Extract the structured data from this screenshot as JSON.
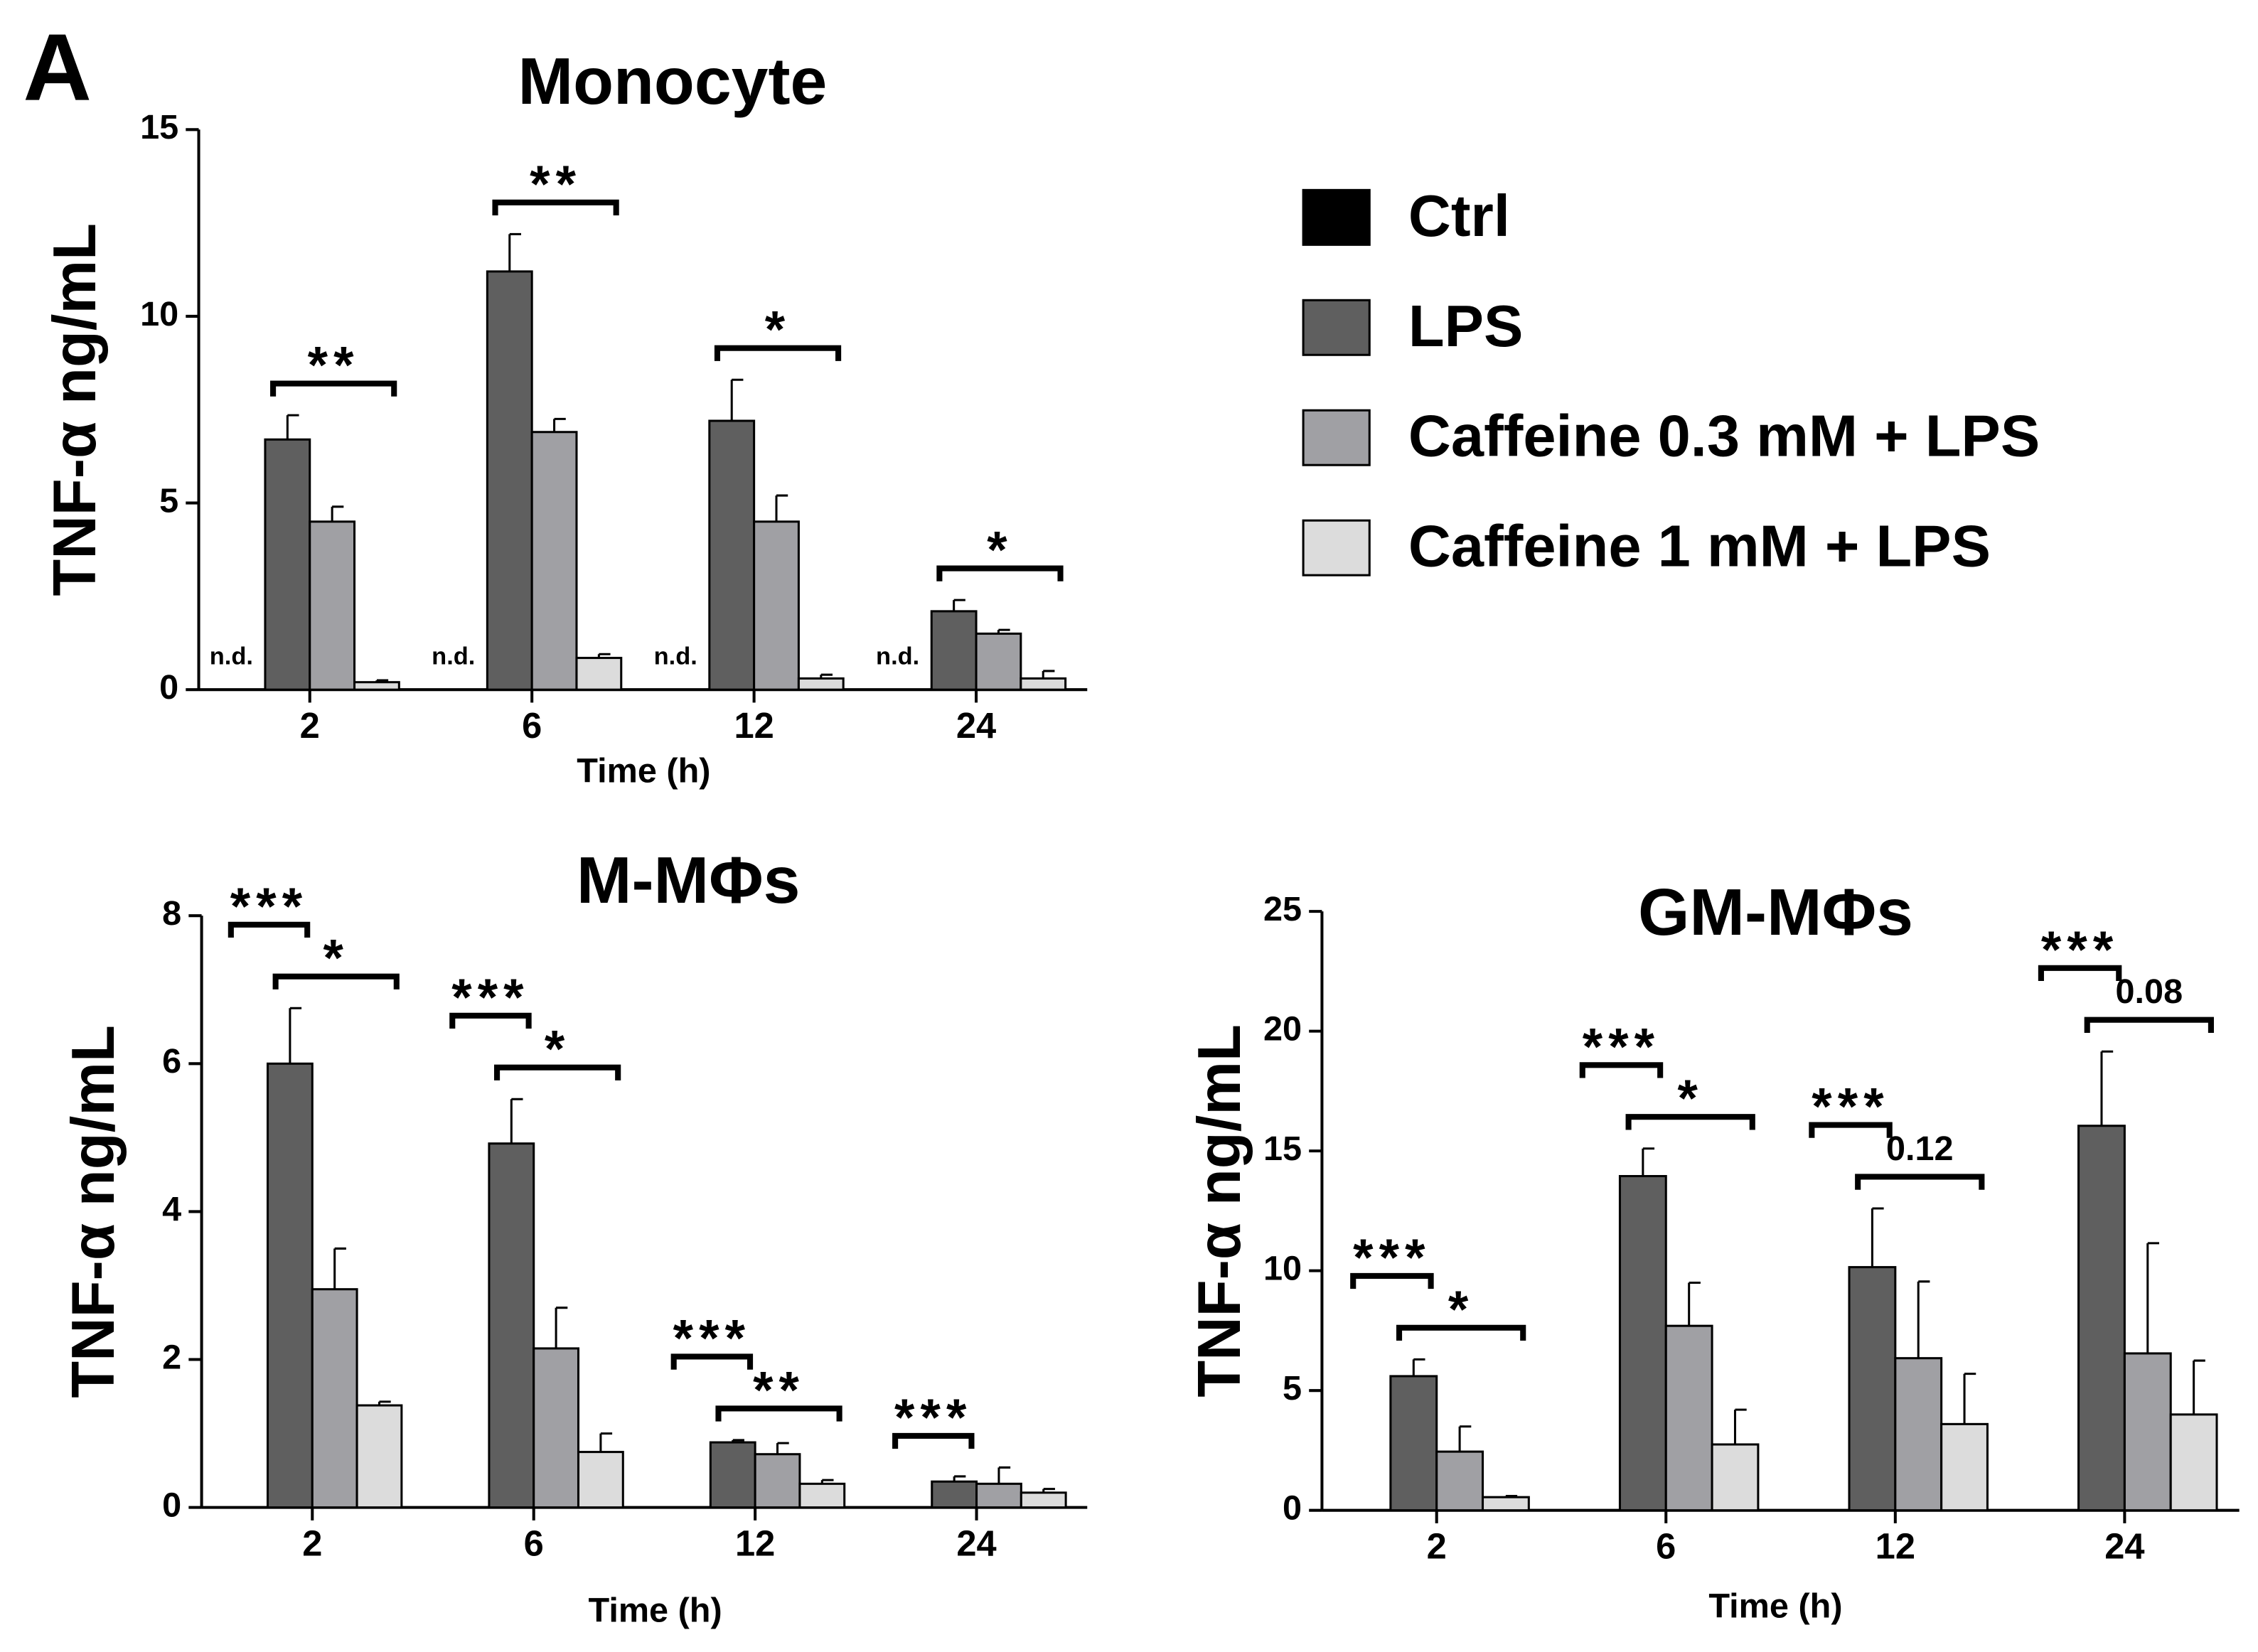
{
  "panel_label": "A",
  "legend": [
    {
      "name": "Ctrl",
      "color": "#000000"
    },
    {
      "name": "LPS",
      "color": "#5f5f5f"
    },
    {
      "name": "Caffeine 0.3 mM + LPS",
      "color": "#a0a0a4"
    },
    {
      "name": "Caffeine 1 mM + LPS",
      "color": "#dcdcdc"
    }
  ],
  "chart_data": [
    {
      "type": "bar",
      "title": "Monocyte",
      "x_label": "Time (h)",
      "y_label": "TNF-α  ng/mL",
      "categories": [
        "2",
        "6",
        "12",
        "24"
      ],
      "series": [
        {
          "values": [
            null,
            null,
            null,
            null
          ],
          "value_labels": [
            "n.d.",
            "n.d.",
            "n.d.",
            "n.d."
          ]
        },
        {
          "values": [
            6.7,
            11.2,
            7.2,
            2.1
          ],
          "errors": [
            0.65,
            1.0,
            1.1,
            0.3
          ]
        },
        {
          "values": [
            4.5,
            6.9,
            4.5,
            1.5
          ],
          "errors": [
            0.4,
            0.35,
            0.7,
            0.1
          ]
        },
        {
          "values": [
            0.2,
            0.85,
            0.3,
            0.3
          ],
          "errors": [
            0.05,
            0.1,
            0.1,
            0.2
          ]
        }
      ],
      "ylim": [
        0,
        15
      ],
      "yticks": [
        0,
        5,
        10,
        15
      ],
      "annotations": [
        {
          "label": "**",
          "group": 0,
          "from": 1,
          "to": 3
        },
        {
          "label": "**",
          "group": 1,
          "from": 1,
          "to": 3
        },
        {
          "label": "*",
          "group": 2,
          "from": 1,
          "to": 3
        },
        {
          "label": "*",
          "group": 3,
          "from": 1,
          "to": 3
        }
      ]
    },
    {
      "type": "bar",
      "title": "M-MΦs",
      "x_label": "Time (h)",
      "y_label": "TNF-α  ng/mL",
      "categories": [
        "2",
        "6",
        "12",
        "24"
      ],
      "series": [
        {
          "values": [
            null,
            null,
            null,
            null
          ]
        },
        {
          "values": [
            6.0,
            4.92,
            0.88,
            0.35
          ],
          "errors": [
            0.75,
            0.6,
            0.03,
            0.07
          ]
        },
        {
          "values": [
            2.95,
            2.15,
            0.72,
            0.32
          ],
          "errors": [
            0.55,
            0.55,
            0.15,
            0.22
          ]
        },
        {
          "values": [
            1.38,
            0.75,
            0.32,
            0.2
          ],
          "errors": [
            0.05,
            0.25,
            0.05,
            0.05
          ]
        }
      ],
      "ylim": [
        0,
        8
      ],
      "yticks": [
        0,
        2,
        4,
        6,
        8
      ],
      "annotations": [
        {
          "label": "***",
          "group": 0,
          "from": 0,
          "to": 1
        },
        {
          "label": "*",
          "group": 0,
          "from": 1,
          "to": 3
        },
        {
          "label": "***",
          "group": 1,
          "from": 0,
          "to": 1
        },
        {
          "label": "*",
          "group": 1,
          "from": 1,
          "to": 3
        },
        {
          "label": "***",
          "group": 2,
          "from": 0,
          "to": 1
        },
        {
          "label": "**",
          "group": 2,
          "from": 1,
          "to": 3
        },
        {
          "label": "***",
          "group": 3,
          "from": 0,
          "to": 1
        }
      ]
    },
    {
      "type": "bar",
      "title": "GM-MΦs",
      "x_label": "Time (h)",
      "y_label": "TNF-α  ng/mL",
      "categories": [
        "2",
        "6",
        "12",
        "24"
      ],
      "series": [
        {
          "values": [
            null,
            null,
            null,
            null
          ]
        },
        {
          "values": [
            5.6,
            13.95,
            10.15,
            16.05
          ],
          "errors": [
            0.7,
            1.15,
            2.45,
            3.1
          ]
        },
        {
          "values": [
            2.45,
            7.7,
            6.35,
            6.55
          ],
          "errors": [
            1.05,
            1.8,
            3.2,
            4.6
          ]
        },
        {
          "values": [
            0.55,
            2.75,
            3.6,
            4.0
          ],
          "errors": [
            0.05,
            1.45,
            2.1,
            2.25
          ]
        }
      ],
      "ylim": [
        0,
        25
      ],
      "yticks": [
        0,
        5,
        10,
        15,
        20,
        25
      ],
      "annotations": [
        {
          "label": "***",
          "group": 0,
          "from": 0,
          "to": 1
        },
        {
          "label": "*",
          "group": 0,
          "from": 1,
          "to": 3
        },
        {
          "label": "***",
          "group": 1,
          "from": 0,
          "to": 1
        },
        {
          "label": "*",
          "group": 1,
          "from": 1,
          "to": 3
        },
        {
          "label": "***",
          "group": 2,
          "from": 0,
          "to": 1
        },
        {
          "label": "0.12",
          "group": 2,
          "from": 1,
          "to": 3
        },
        {
          "label": "***",
          "group": 3,
          "from": 0,
          "to": 1
        },
        {
          "label": "0.08",
          "group": 3,
          "from": 1,
          "to": 3
        }
      ]
    }
  ]
}
